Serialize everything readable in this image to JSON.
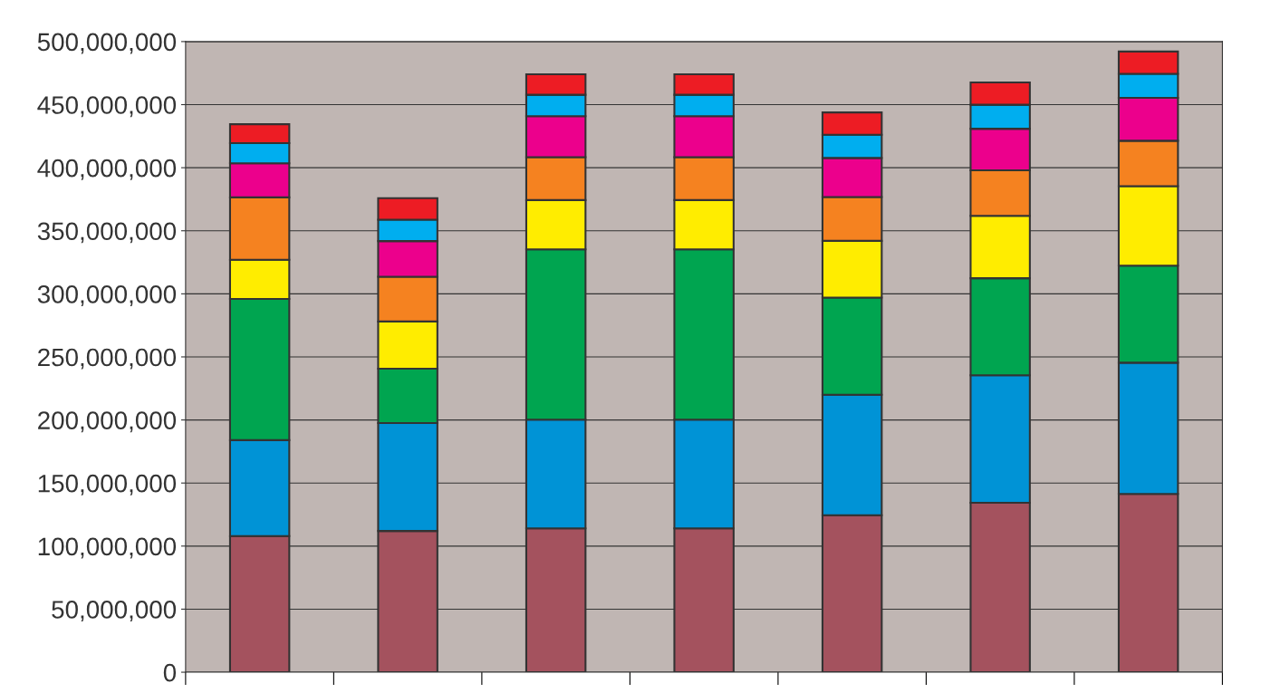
{
  "chart_data": {
    "type": "bar",
    "stacked": true,
    "categories": [
      null,
      null,
      null,
      null,
      null,
      null,
      null
    ],
    "series": [
      {
        "color": "#a4525e",
        "values": [
          108000000,
          112000000,
          114000000,
          114000000,
          124500000,
          134400000,
          141400000
        ]
      },
      {
        "color": "#0093d6",
        "values": [
          76000000,
          85600000,
          86300000,
          86300000,
          95500000,
          101000000,
          104000000
        ]
      },
      {
        "color": "#00a550",
        "values": [
          112000000,
          43000000,
          135000000,
          135000000,
          77000000,
          77000000,
          77000000
        ]
      },
      {
        "color": "#ffed00",
        "values": [
          31000000,
          37500000,
          39000000,
          39000000,
          45000000,
          49500000,
          63000000
        ]
      },
      {
        "color": "#f58220",
        "values": [
          49500000,
          35400000,
          34000000,
          34000000,
          34700000,
          36000000,
          36000000
        ]
      },
      {
        "color": "#ec008c",
        "values": [
          27000000,
          28300000,
          32500000,
          32500000,
          31000000,
          33000000,
          34000000
        ]
      },
      {
        "color": "#00aeef",
        "values": [
          16000000,
          17000000,
          17000000,
          17000000,
          18400000,
          19000000,
          19000000
        ]
      },
      {
        "color": "#ed1c24",
        "values": [
          15000000,
          17000000,
          16300000,
          16300000,
          17700000,
          17700000,
          17700000
        ]
      }
    ],
    "ylim": [
      0,
      500000000
    ],
    "yticks": [
      0,
      {
        "value": 50000000,
        "label": "50,000,000"
      },
      {
        "value": 100000000,
        "label": "100,000,000"
      },
      {
        "value": 150000000,
        "label": "150,000,000"
      },
      {
        "value": 200000000,
        "label": "200,000,000"
      },
      {
        "value": 250000000,
        "label": "250,000,000"
      },
      {
        "value": 300000000,
        "label": "300,000,000"
      },
      {
        "value": 350000000,
        "label": "350,000,000"
      },
      {
        "value": 400000000,
        "label": "400,000,000"
      },
      {
        "value": 450000000,
        "label": "450,000,000"
      },
      {
        "value": 500000000,
        "label": "500,000,000"
      }
    ],
    "grid": "y",
    "tick_labels": "y"
  }
}
